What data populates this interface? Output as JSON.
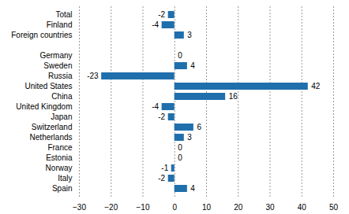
{
  "chart_data": {
    "type": "bar",
    "orientation": "horizontal",
    "categories": [
      "Total",
      "Finland",
      "Foreign countries",
      null,
      "Germany",
      "Sweden",
      "Russia",
      "United States",
      "China",
      "United Kingdom",
      "Japan",
      "Switzerland",
      "Netherlands",
      "France",
      "Estonia",
      "Norway",
      "Italy",
      "Spain"
    ],
    "values": [
      -2,
      -4,
      3,
      null,
      0,
      4,
      -23,
      42,
      16,
      -4,
      -2,
      6,
      3,
      0,
      0,
      -1,
      -2,
      4
    ],
    "color": "#1f6fad",
    "xlim": [
      -30,
      50
    ],
    "xticks": [
      -30,
      -20,
      -10,
      0,
      10,
      20,
      30,
      40,
      50
    ],
    "grid": true,
    "data_labels": true
  }
}
